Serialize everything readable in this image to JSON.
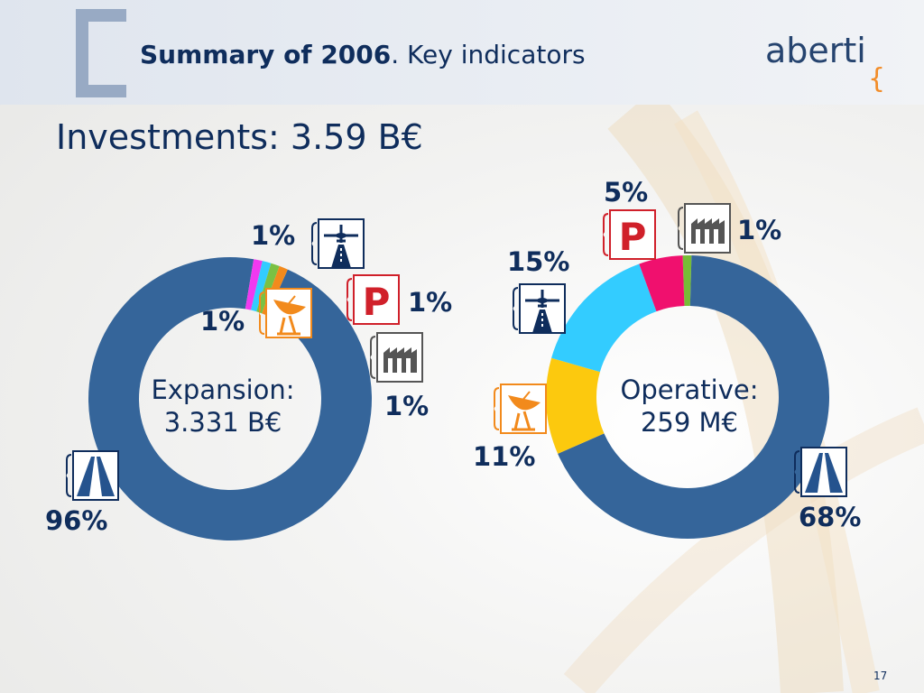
{
  "header": {
    "title_bold": "Summary of 2006",
    "title_rest": ". Key indicators",
    "logo_text": "aberti",
    "logo_swirl": "{"
  },
  "subtitle": "Investments: 3.59 B€",
  "page_number": "17",
  "chart_data": [
    {
      "type": "pie",
      "style": "donut",
      "center_label_line1": "Expansion:",
      "center_label_line2": "3.331 B€",
      "slices": [
        {
          "category": "motorways",
          "icon": "motorway-icon",
          "value": 96,
          "label": "96%",
          "color": "#35659a"
        },
        {
          "category": "airports",
          "icon": "airplane-runway-icon",
          "value": 1,
          "label": "1%",
          "color": "#f039f0"
        },
        {
          "category": "car parks",
          "icon": "parking-icon",
          "value": 1,
          "label": "1%",
          "color": "#33ccff"
        },
        {
          "category": "logistics",
          "icon": "factory-icon",
          "value": 1,
          "label": "1%",
          "color": "#7ac143"
        },
        {
          "category": "telecommunications",
          "icon": "satellite-dish-icon",
          "value": 1,
          "label": "1%",
          "color": "#f28a1c"
        }
      ]
    },
    {
      "type": "pie",
      "style": "donut",
      "center_label_line1": "Operative:",
      "center_label_line2": "259 M€",
      "slices": [
        {
          "category": "logistics",
          "icon": "factory-icon",
          "value": 1,
          "label": "1%",
          "color": "#77bc36"
        },
        {
          "category": "motorways",
          "icon": "motorway-icon",
          "value": 68,
          "label": "68%",
          "color": "#35659a"
        },
        {
          "category": "telecommunications",
          "icon": "satellite-dish-icon",
          "value": 11,
          "label": "11%",
          "color": "#fcc90e"
        },
        {
          "category": "airports",
          "icon": "airplane-runway-icon",
          "value": 15,
          "label": "15%",
          "color": "#33ccff"
        },
        {
          "category": "car parks",
          "icon": "parking-icon",
          "value": 5,
          "label": "5%",
          "color": "#f0106e"
        }
      ]
    }
  ]
}
